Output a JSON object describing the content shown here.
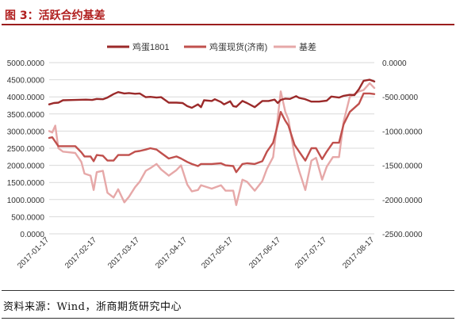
{
  "figure": {
    "title": "图 3：活跃合约基差",
    "source": "资料来源：Wind，浙商期货研究中心"
  },
  "chart_data": {
    "type": "line",
    "title": "",
    "xlabel": "",
    "ylabel_left": "",
    "ylabel_right": "",
    "legend_position": "top",
    "grid": true,
    "left_axis": {
      "ylim": [
        0,
        5000
      ],
      "ticks": [
        "0.0000",
        "500.0000",
        "1000.0000",
        "1500.0000",
        "2000.0000",
        "2500.0000",
        "3000.0000",
        "3500.0000",
        "4000.0000",
        "4500.0000",
        "5000.0000"
      ]
    },
    "right_axis": {
      "ylim": [
        -2500,
        0
      ],
      "ticks": [
        "0.0000",
        "-500.0000",
        "-1000.0000",
        "-1500.0000",
        "-2000.0000",
        "-2500.0000"
      ]
    },
    "x_range": [
      "2017-01-17",
      "2017-08-17"
    ],
    "x_ticks": [
      "2017-01-17",
      "2017-02-17",
      "2017-03-17",
      "2017-04-17",
      "2017-05-17",
      "2017-06-17",
      "2017-07-17",
      "2017-08-17"
    ],
    "series": [
      {
        "name": "鸡蛋1801",
        "axis": "left",
        "color": "#9b2a2a",
        "points": [
          [
            "2017-01-17",
            3780
          ],
          [
            "2017-01-20",
            3820
          ],
          [
            "2017-01-23",
            3830
          ],
          [
            "2017-01-26",
            3900
          ],
          [
            "2017-02-03",
            3910
          ],
          [
            "2017-02-10",
            3920
          ],
          [
            "2017-02-14",
            3910
          ],
          [
            "2017-02-17",
            3940
          ],
          [
            "2017-02-21",
            3930
          ],
          [
            "2017-02-24",
            3980
          ],
          [
            "2017-02-28",
            4080
          ],
          [
            "2017-03-03",
            4140
          ],
          [
            "2017-03-07",
            4100
          ],
          [
            "2017-03-10",
            4110
          ],
          [
            "2017-03-14",
            4090
          ],
          [
            "2017-03-17",
            4100
          ],
          [
            "2017-03-21",
            3990
          ],
          [
            "2017-03-24",
            4000
          ],
          [
            "2017-03-28",
            3980
          ],
          [
            "2017-03-31",
            3990
          ],
          [
            "2017-04-05",
            3830
          ],
          [
            "2017-04-10",
            3830
          ],
          [
            "2017-04-14",
            3820
          ],
          [
            "2017-04-17",
            3730
          ],
          [
            "2017-04-20",
            3680
          ],
          [
            "2017-04-24",
            3780
          ],
          [
            "2017-04-26",
            3700
          ],
          [
            "2017-04-28",
            3900
          ],
          [
            "2017-05-03",
            3880
          ],
          [
            "2017-05-05",
            3930
          ],
          [
            "2017-05-09",
            3850
          ],
          [
            "2017-05-11",
            3780
          ],
          [
            "2017-05-15",
            3870
          ],
          [
            "2017-05-17",
            3730
          ],
          [
            "2017-05-19",
            3710
          ],
          [
            "2017-05-23",
            3880
          ],
          [
            "2017-05-26",
            3820
          ],
          [
            "2017-05-31",
            3700
          ],
          [
            "2017-06-05",
            3880
          ],
          [
            "2017-06-09",
            3880
          ],
          [
            "2017-06-13",
            3920
          ],
          [
            "2017-06-15",
            3820
          ],
          [
            "2017-06-17",
            3910
          ],
          [
            "2017-06-20",
            3950
          ],
          [
            "2017-06-23",
            3940
          ],
          [
            "2017-06-27",
            4020
          ],
          [
            "2017-06-29",
            3970
          ],
          [
            "2017-07-03",
            3930
          ],
          [
            "2017-07-07",
            3860
          ],
          [
            "2017-07-12",
            3860
          ],
          [
            "2017-07-17",
            3890
          ],
          [
            "2017-07-20",
            4010
          ],
          [
            "2017-07-25",
            3980
          ],
          [
            "2017-07-28",
            4030
          ],
          [
            "2017-08-01",
            4060
          ],
          [
            "2017-08-04",
            4050
          ],
          [
            "2017-08-07",
            4230
          ],
          [
            "2017-08-10",
            4470
          ],
          [
            "2017-08-14",
            4500
          ],
          [
            "2017-08-17",
            4450
          ]
        ]
      },
      {
        "name": "鸡蛋现货(济南)",
        "axis": "left",
        "color": "#c0504d",
        "points": [
          [
            "2017-01-17",
            2800
          ],
          [
            "2017-01-19",
            2820
          ],
          [
            "2017-01-23",
            2560
          ],
          [
            "2017-01-26",
            2560
          ],
          [
            "2017-02-03",
            2560
          ],
          [
            "2017-02-07",
            2380
          ],
          [
            "2017-02-09",
            2260
          ],
          [
            "2017-02-13",
            2260
          ],
          [
            "2017-02-15",
            2120
          ],
          [
            "2017-02-17",
            2300
          ],
          [
            "2017-02-21",
            2280
          ],
          [
            "2017-02-24",
            2140
          ],
          [
            "2017-02-28",
            2140
          ],
          [
            "2017-03-03",
            2300
          ],
          [
            "2017-03-07",
            2300
          ],
          [
            "2017-03-10",
            2300
          ],
          [
            "2017-03-14",
            2400
          ],
          [
            "2017-03-17",
            2420
          ],
          [
            "2017-03-21",
            2460
          ],
          [
            "2017-03-24",
            2500
          ],
          [
            "2017-03-28",
            2460
          ],
          [
            "2017-03-31",
            2360
          ],
          [
            "2017-04-05",
            2200
          ],
          [
            "2017-04-10",
            2260
          ],
          [
            "2017-04-13",
            2200
          ],
          [
            "2017-04-17",
            2100
          ],
          [
            "2017-04-20",
            2040
          ],
          [
            "2017-04-24",
            1980
          ],
          [
            "2017-04-26",
            2040
          ],
          [
            "2017-05-03",
            2040
          ],
          [
            "2017-05-09",
            2060
          ],
          [
            "2017-05-12",
            2000
          ],
          [
            "2017-05-17",
            1980
          ],
          [
            "2017-05-19",
            1800
          ],
          [
            "2017-05-23",
            2040
          ],
          [
            "2017-05-26",
            2060
          ],
          [
            "2017-05-31",
            2040
          ],
          [
            "2017-06-05",
            2120
          ],
          [
            "2017-06-08",
            2400
          ],
          [
            "2017-06-12",
            2660
          ],
          [
            "2017-06-14",
            3000
          ],
          [
            "2017-06-17",
            3560
          ],
          [
            "2017-06-20",
            3300
          ],
          [
            "2017-06-22",
            3160
          ],
          [
            "2017-06-26",
            2600
          ],
          [
            "2017-06-29",
            2400
          ],
          [
            "2017-07-03",
            2140
          ],
          [
            "2017-07-07",
            2500
          ],
          [
            "2017-07-10",
            2500
          ],
          [
            "2017-07-14",
            2180
          ],
          [
            "2017-07-17",
            2400
          ],
          [
            "2017-07-21",
            2660
          ],
          [
            "2017-07-25",
            2660
          ],
          [
            "2017-07-28",
            3200
          ],
          [
            "2017-08-01",
            3560
          ],
          [
            "2017-08-07",
            3800
          ],
          [
            "2017-08-10",
            4100
          ],
          [
            "2017-08-14",
            4100
          ],
          [
            "2017-08-17",
            4080
          ]
        ]
      },
      {
        "name": "基差",
        "axis": "right",
        "color": "#e6a8a8",
        "points": [
          [
            "2017-01-17",
            -1000
          ],
          [
            "2017-01-19",
            -1020
          ],
          [
            "2017-01-21",
            -920
          ],
          [
            "2017-01-23",
            -1250
          ],
          [
            "2017-01-26",
            -1300
          ],
          [
            "2017-02-03",
            -1320
          ],
          [
            "2017-02-07",
            -1450
          ],
          [
            "2017-02-09",
            -1620
          ],
          [
            "2017-02-13",
            -1650
          ],
          [
            "2017-02-15",
            -1860
          ],
          [
            "2017-02-17",
            -1600
          ],
          [
            "2017-02-21",
            -1580
          ],
          [
            "2017-02-24",
            -1900
          ],
          [
            "2017-02-28",
            -1970
          ],
          [
            "2017-03-03",
            -1850
          ],
          [
            "2017-03-07",
            -2040
          ],
          [
            "2017-03-10",
            -1960
          ],
          [
            "2017-03-14",
            -1820
          ],
          [
            "2017-03-17",
            -1740
          ],
          [
            "2017-03-21",
            -1580
          ],
          [
            "2017-03-24",
            -1540
          ],
          [
            "2017-03-28",
            -1480
          ],
          [
            "2017-03-31",
            -1560
          ],
          [
            "2017-04-05",
            -1650
          ],
          [
            "2017-04-10",
            -1570
          ],
          [
            "2017-04-13",
            -1500
          ],
          [
            "2017-04-17",
            -1780
          ],
          [
            "2017-04-20",
            -1880
          ],
          [
            "2017-04-24",
            -1860
          ],
          [
            "2017-04-26",
            -1790
          ],
          [
            "2017-05-03",
            -1840
          ],
          [
            "2017-05-09",
            -1790
          ],
          [
            "2017-05-12",
            -1870
          ],
          [
            "2017-05-17",
            -1870
          ],
          [
            "2017-05-19",
            -2080
          ],
          [
            "2017-05-23",
            -1710
          ],
          [
            "2017-05-26",
            -1740
          ],
          [
            "2017-05-31",
            -1870
          ],
          [
            "2017-06-05",
            -1730
          ],
          [
            "2017-06-08",
            -1550
          ],
          [
            "2017-06-12",
            -1380
          ],
          [
            "2017-06-14",
            -1010
          ],
          [
            "2017-06-17",
            -420
          ],
          [
            "2017-06-20",
            -720
          ],
          [
            "2017-06-22",
            -830
          ],
          [
            "2017-06-26",
            -1350
          ],
          [
            "2017-06-29",
            -1580
          ],
          [
            "2017-07-03",
            -1860
          ],
          [
            "2017-07-07",
            -1430
          ],
          [
            "2017-07-10",
            -1390
          ],
          [
            "2017-07-14",
            -1710
          ],
          [
            "2017-07-17",
            -1520
          ],
          [
            "2017-07-21",
            -1380
          ],
          [
            "2017-07-25",
            -1380
          ],
          [
            "2017-07-28",
            -860
          ],
          [
            "2017-08-01",
            -500
          ],
          [
            "2017-08-07",
            -420
          ],
          [
            "2017-08-10",
            -400
          ],
          [
            "2017-08-14",
            -300
          ],
          [
            "2017-08-17",
            -370
          ]
        ]
      }
    ]
  }
}
